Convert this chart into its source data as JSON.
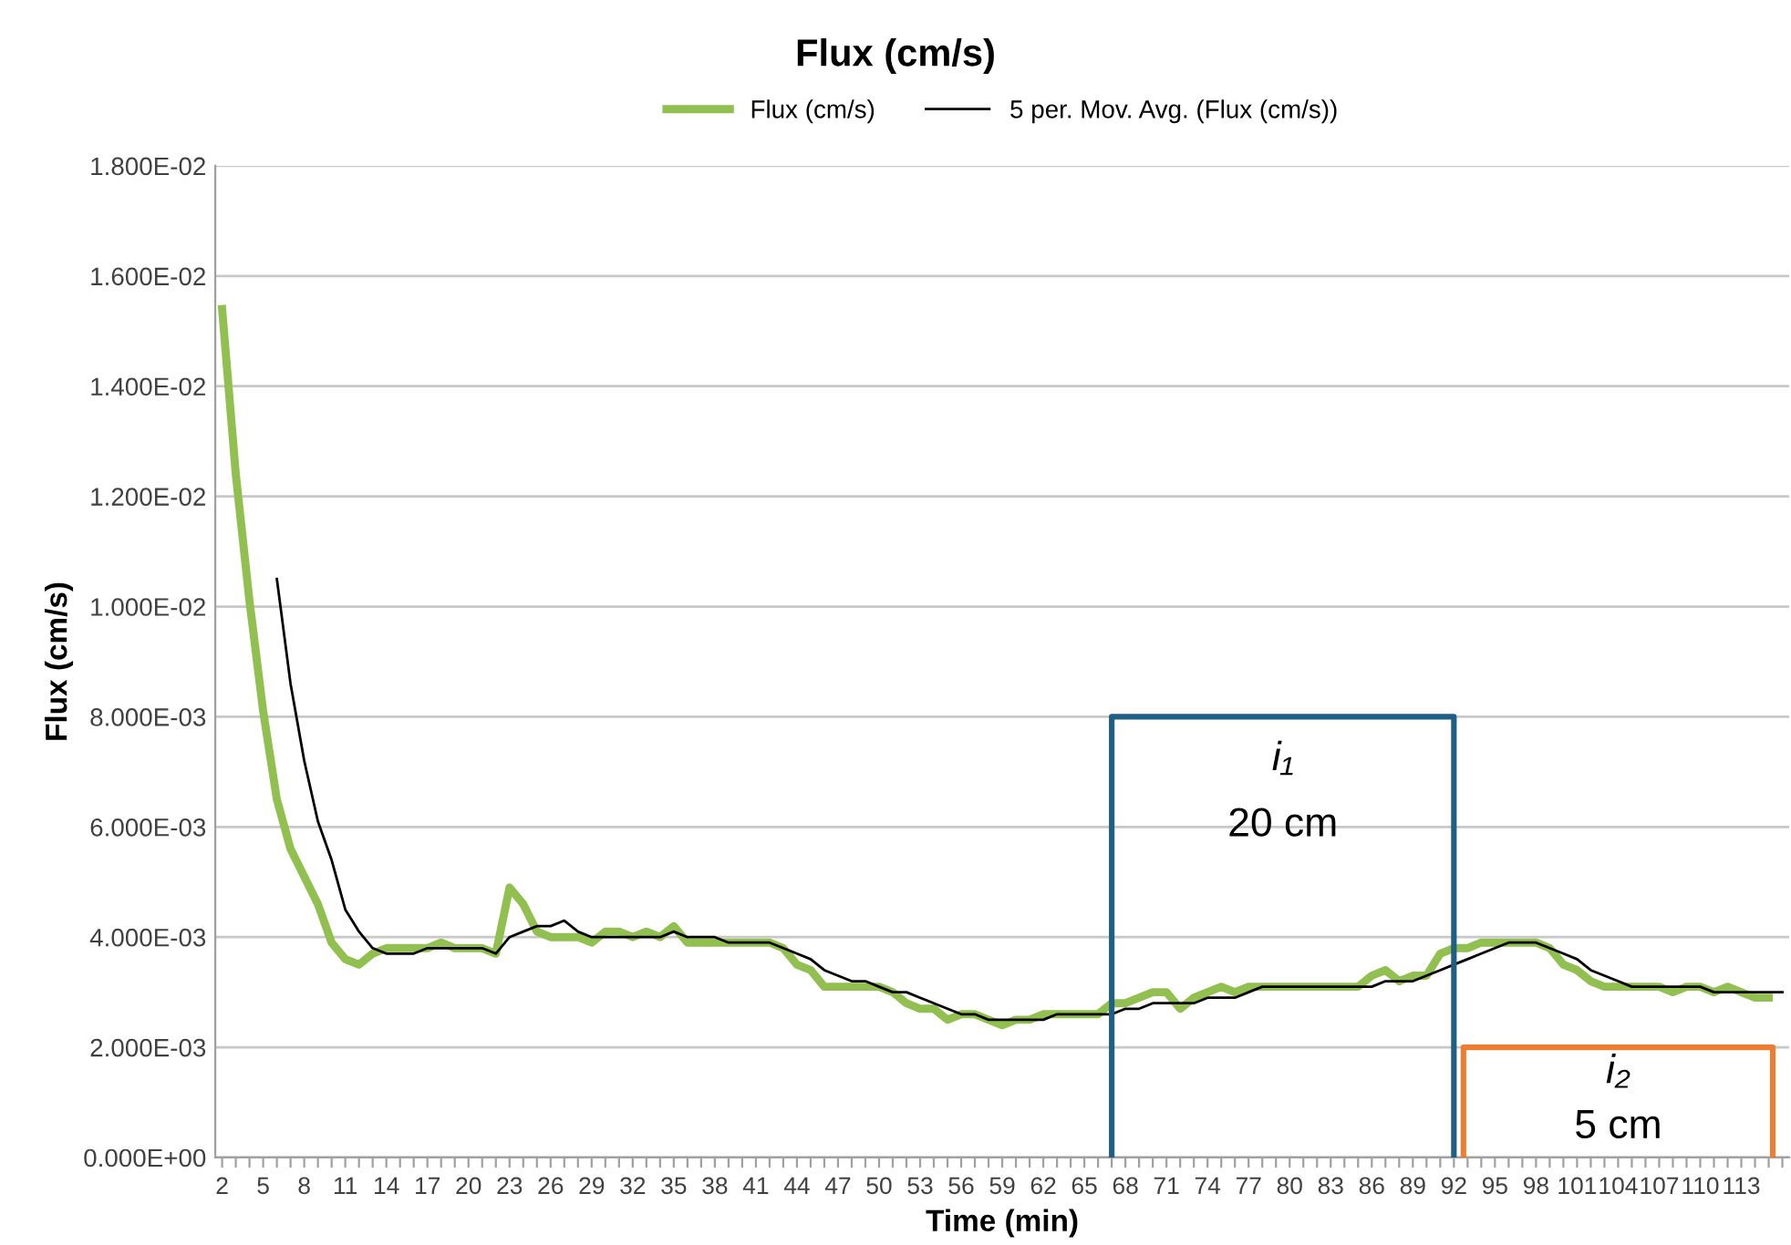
{
  "chart_data": {
    "type": "line",
    "title": "Flux (cm/s)",
    "xlabel": "Time (min)",
    "ylabel": "Flux (cm/s)",
    "x": [
      2,
      3,
      4,
      5,
      6,
      7,
      8,
      9,
      10,
      11,
      12,
      13,
      14,
      15,
      16,
      17,
      18,
      19,
      20,
      21,
      22,
      23,
      24,
      25,
      26,
      27,
      28,
      29,
      30,
      31,
      32,
      33,
      34,
      35,
      36,
      37,
      38,
      39,
      40,
      41,
      42,
      43,
      44,
      45,
      46,
      47,
      48,
      49,
      50,
      51,
      52,
      53,
      54,
      55,
      56,
      57,
      58,
      59,
      60,
      61,
      62,
      63,
      64,
      65,
      66,
      67,
      68,
      69,
      70,
      71,
      72,
      73,
      74,
      75,
      76,
      77,
      78,
      79,
      80,
      81,
      82,
      83,
      84,
      85,
      86,
      87,
      88,
      89,
      90,
      91,
      92,
      93,
      94,
      95,
      96,
      97,
      98,
      99,
      100,
      101,
      102,
      103,
      104,
      105,
      106,
      107,
      108,
      109,
      110,
      111,
      112,
      113,
      114,
      115,
      116
    ],
    "series": [
      {
        "name": "Flux (cm/s)",
        "color": "#92c050",
        "values": [
          0.0154,
          0.0124,
          0.0101,
          0.0081,
          0.0065,
          0.0056,
          0.0051,
          0.0046,
          0.0039,
          0.0036,
          0.0035,
          0.0037,
          0.0038,
          0.0038,
          0.0038,
          0.0038,
          0.0039,
          0.0038,
          0.0038,
          0.0038,
          0.0037,
          0.0049,
          0.0046,
          0.0041,
          0.004,
          0.004,
          0.004,
          0.0039,
          0.0041,
          0.0041,
          0.004,
          0.0041,
          0.004,
          0.0042,
          0.0039,
          0.0039,
          0.0039,
          0.0039,
          0.0039,
          0.0039,
          0.0039,
          0.0038,
          0.0035,
          0.0034,
          0.0031,
          0.0031,
          0.0031,
          0.0031,
          0.0031,
          0.003,
          0.0028,
          0.0027,
          0.0027,
          0.0025,
          0.0026,
          0.0026,
          0.0025,
          0.0024,
          0.0025,
          0.0025,
          0.0026,
          0.0026,
          0.0026,
          0.0026,
          0.0026,
          0.0028,
          0.0028,
          0.0029,
          0.003,
          0.003,
          0.0027,
          0.0029,
          0.003,
          0.0031,
          0.003,
          0.0031,
          0.0031,
          0.0031,
          0.0031,
          0.0031,
          0.0031,
          0.0031,
          0.0031,
          0.0031,
          0.0033,
          0.0034,
          0.0032,
          0.0033,
          0.0033,
          0.0037,
          0.0038,
          0.0038,
          0.0039,
          0.0039,
          0.0039,
          0.0039,
          0.0039,
          0.0038,
          0.0035,
          0.0034,
          0.0032,
          0.0031,
          0.0031,
          0.0031,
          0.0031,
          0.0031,
          0.003,
          0.0031,
          0.0031,
          0.003,
          0.0031,
          0.003,
          0.0029,
          0.0029,
          null
        ]
      },
      {
        "name": "5 per. Mov. Avg. (Flux (cm/s))",
        "color": "#000000",
        "values": [
          null,
          null,
          null,
          null,
          0.0105,
          0.0086,
          0.0072,
          0.0061,
          0.0054,
          0.0045,
          0.0041,
          0.0038,
          0.0037,
          0.0037,
          0.0037,
          0.0038,
          0.0038,
          0.0038,
          0.0038,
          0.0038,
          0.0037,
          0.004,
          0.0041,
          0.0042,
          0.0042,
          0.0043,
          0.0041,
          0.004,
          0.004,
          0.004,
          0.004,
          0.004,
          0.004,
          0.0041,
          0.004,
          0.004,
          0.004,
          0.0039,
          0.0039,
          0.0039,
          0.0039,
          0.0038,
          0.0037,
          0.0036,
          0.0034,
          0.0033,
          0.0032,
          0.0032,
          0.0031,
          0.003,
          0.003,
          0.0029,
          0.0028,
          0.0027,
          0.0026,
          0.0026,
          0.0025,
          0.0025,
          0.0025,
          0.0025,
          0.0025,
          0.0026,
          0.0026,
          0.0026,
          0.0026,
          0.0026,
          0.0027,
          0.0027,
          0.0028,
          0.0028,
          0.0028,
          0.0028,
          0.0029,
          0.0029,
          0.0029,
          0.003,
          0.0031,
          0.0031,
          0.0031,
          0.0031,
          0.0031,
          0.0031,
          0.0031,
          0.0031,
          0.0031,
          0.0032,
          0.0032,
          0.0032,
          0.0033,
          0.0034,
          0.0035,
          0.0036,
          0.0037,
          0.0038,
          0.0039,
          0.0039,
          0.0039,
          0.0038,
          0.0037,
          0.0036,
          0.0034,
          0.0033,
          0.0032,
          0.0031,
          0.0031,
          0.0031,
          0.0031,
          0.0031,
          0.0031,
          0.003,
          0.003,
          0.003,
          0.003,
          0.003,
          0.003
        ]
      },
      {
        "color": "#1f5f86",
        "x": [
          67,
          67,
          92,
          92
        ],
        "values": [
          0,
          0.008,
          0.008,
          0
        ]
      },
      {
        "color": "#ed7d31",
        "x": [
          92.7,
          92.7,
          115.3,
          115.3
        ],
        "values": [
          0,
          0.002,
          0.002,
          0
        ]
      }
    ],
    "annotations": [
      "i₁",
      "20 cm",
      "i₂",
      "5 cm"
    ],
    "xlim": [
      1.5,
      116.5
    ],
    "xticks": [
      2,
      {
        "value": 3,
        "label": null
      },
      {
        "value": 4,
        "label": null
      },
      5,
      {
        "value": 6,
        "label": null
      },
      {
        "value": 7,
        "label": null
      },
      8,
      {
        "value": 9,
        "label": null
      },
      {
        "value": 10,
        "label": null
      },
      11,
      {
        "value": 12,
        "label": null
      },
      {
        "value": 13,
        "label": null
      },
      14,
      {
        "value": 15,
        "label": null
      },
      {
        "value": 16,
        "label": null
      },
      17,
      {
        "value": 18,
        "label": null
      },
      {
        "value": 19,
        "label": null
      },
      20,
      {
        "value": 21,
        "label": null
      },
      {
        "value": 22,
        "label": null
      },
      23,
      {
        "value": 24,
        "label": null
      },
      {
        "value": 25,
        "label": null
      },
      26,
      {
        "value": 27,
        "label": null
      },
      {
        "value": 28,
        "label": null
      },
      29,
      {
        "value": 30,
        "label": null
      },
      {
        "value": 31,
        "label": null
      },
      32,
      {
        "value": 33,
        "label": null
      },
      {
        "value": 34,
        "label": null
      },
      35,
      {
        "value": 36,
        "label": null
      },
      {
        "value": 37,
        "label": null
      },
      38,
      {
        "value": 39,
        "label": null
      },
      {
        "value": 40,
        "label": null
      },
      41,
      {
        "value": 42,
        "label": null
      },
      {
        "value": 43,
        "label": null
      },
      44,
      {
        "value": 45,
        "label": null
      },
      {
        "value": 46,
        "label": null
      },
      47,
      {
        "value": 48,
        "label": null
      },
      {
        "value": 49,
        "label": null
      },
      50,
      {
        "value": 51,
        "label": null
      },
      {
        "value": 52,
        "label": null
      },
      53,
      {
        "value": 54,
        "label": null
      },
      {
        "value": 55,
        "label": null
      },
      56,
      {
        "value": 57,
        "label": null
      },
      {
        "value": 58,
        "label": null
      },
      59,
      {
        "value": 60,
        "label": null
      },
      {
        "value": 61,
        "label": null
      },
      62,
      {
        "value": 63,
        "label": null
      },
      {
        "value": 64,
        "label": null
      },
      65,
      {
        "value": 66,
        "label": null
      },
      {
        "value": 67,
        "label": null
      },
      68,
      {
        "value": 69,
        "label": null
      },
      {
        "value": 70,
        "label": null
      },
      71,
      {
        "value": 72,
        "label": null
      },
      {
        "value": 73,
        "label": null
      },
      74,
      {
        "value": 75,
        "label": null
      },
      {
        "value": 76,
        "label": null
      },
      77,
      {
        "value": 78,
        "label": null
      },
      {
        "value": 79,
        "label": null
      },
      80,
      {
        "value": 81,
        "label": null
      },
      {
        "value": 82,
        "label": null
      },
      83,
      {
        "value": 84,
        "label": null
      },
      {
        "value": 85,
        "label": null
      },
      86,
      {
        "value": 87,
        "label": null
      },
      {
        "value": 88,
        "label": null
      },
      89,
      {
        "value": 90,
        "label": null
      },
      {
        "value": 91,
        "label": null
      },
      92,
      {
        "value": 93,
        "label": null
      },
      {
        "value": 94,
        "label": null
      },
      95,
      {
        "value": 96,
        "label": null
      },
      {
        "value": 97,
        "label": null
      },
      98,
      {
        "value": 99,
        "label": null
      },
      {
        "value": 100,
        "label": null
      },
      101,
      {
        "value": 102,
        "label": null
      },
      {
        "value": 103,
        "label": null
      },
      104,
      {
        "value": 105,
        "label": null
      },
      {
        "value": 106,
        "label": null
      },
      107,
      {
        "value": 108,
        "label": null
      },
      {
        "value": 109,
        "label": null
      },
      110,
      {
        "value": 111,
        "label": null
      },
      {
        "value": 112,
        "label": null
      },
      113,
      {
        "value": 114,
        "label": null
      },
      {
        "value": 115,
        "label": null
      },
      {
        "value": 116,
        "label": null
      }
    ],
    "ylim": [
      0,
      0.018
    ],
    "yticks": [
      {
        "value": 0,
        "label": "0.000E+00"
      },
      {
        "value": 0.002,
        "label": "2.000E-03"
      },
      {
        "value": 0.004,
        "label": "4.000E-03"
      },
      {
        "value": 0.006,
        "label": "6.000E-03"
      },
      {
        "value": 0.008,
        "label": "8.000E-03"
      },
      {
        "value": 0.01,
        "label": "1.000E-02"
      },
      {
        "value": 0.012,
        "label": "1.200E-02"
      },
      {
        "value": 0.014,
        "label": "1.400E-02"
      },
      {
        "value": 0.016,
        "label": "1.600E-02"
      },
      {
        "value": 0.018,
        "label": "1.800E-02"
      }
    ],
    "grid": "y",
    "legend": "top"
  }
}
